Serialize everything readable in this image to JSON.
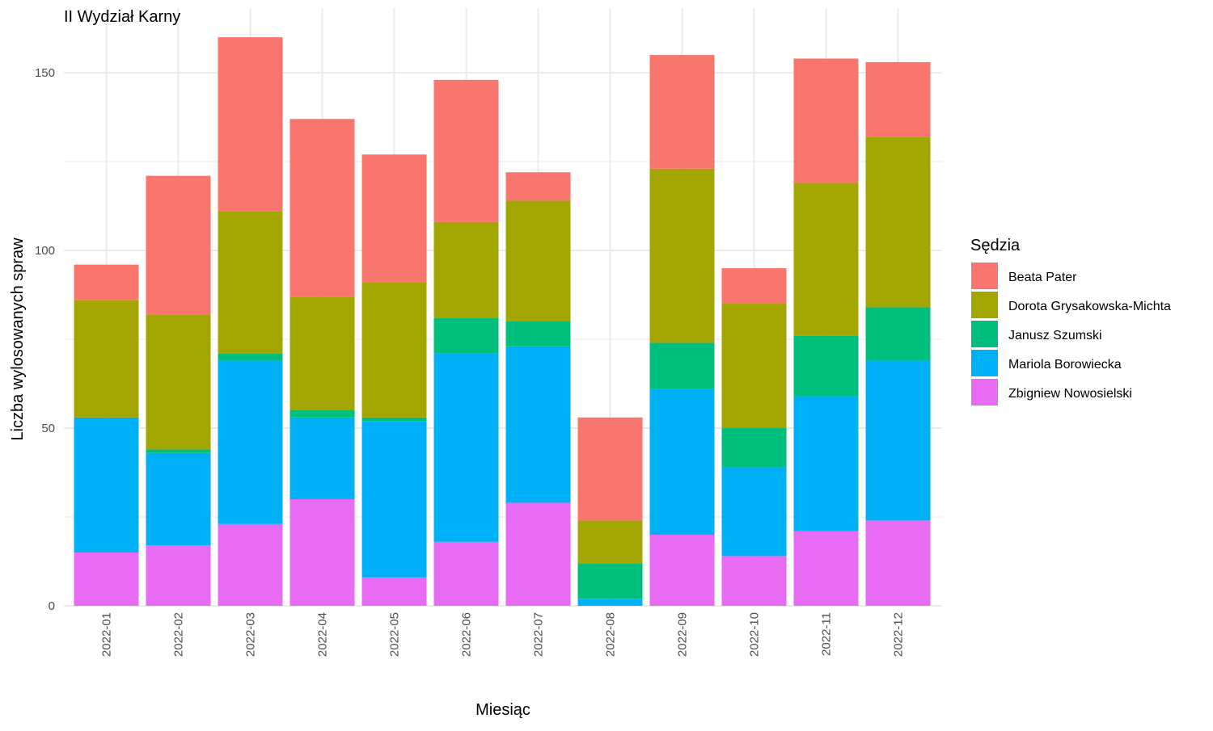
{
  "chart_data": {
    "type": "bar",
    "stacked": true,
    "title": "II Wydział Karny",
    "xlabel": "Miesiąc",
    "ylabel": "Liczba wylosowanych spraw",
    "ylim": [
      0,
      160
    ],
    "y_ticks": [
      0,
      50,
      100,
      150
    ],
    "grid": true,
    "legend_title": "Sędzia",
    "legend_position": "right",
    "categories": [
      "2022-01",
      "2022-02",
      "2022-03",
      "2022-04",
      "2022-05",
      "2022-06",
      "2022-07",
      "2022-08",
      "2022-09",
      "2022-10",
      "2022-11",
      "2022-12"
    ],
    "series": [
      {
        "name": "Beata Pater",
        "color": "#F8766D",
        "values": [
          10,
          39,
          49,
          50,
          36,
          40,
          8,
          29,
          32,
          10,
          35,
          21
        ]
      },
      {
        "name": "Dorota Grysakowska-Michta",
        "color": "#A3A500",
        "values": [
          33,
          38,
          40,
          32,
          38,
          27,
          34,
          12,
          49,
          35,
          43,
          48
        ]
      },
      {
        "name": "Janusz Szumski",
        "color": "#00BF7D",
        "values": [
          0,
          1,
          2,
          2,
          1,
          10,
          7,
          10,
          13,
          11,
          17,
          15
        ]
      },
      {
        "name": "Mariola Borowiecka",
        "color": "#00B0F6",
        "values": [
          38,
          26,
          46,
          23,
          44,
          53,
          44,
          2,
          41,
          25,
          38,
          45
        ]
      },
      {
        "name": "Zbigniew Nowosielski",
        "color": "#E76BF3",
        "values": [
          15,
          17,
          23,
          30,
          8,
          18,
          29,
          0,
          20,
          14,
          21,
          24
        ]
      }
    ]
  }
}
